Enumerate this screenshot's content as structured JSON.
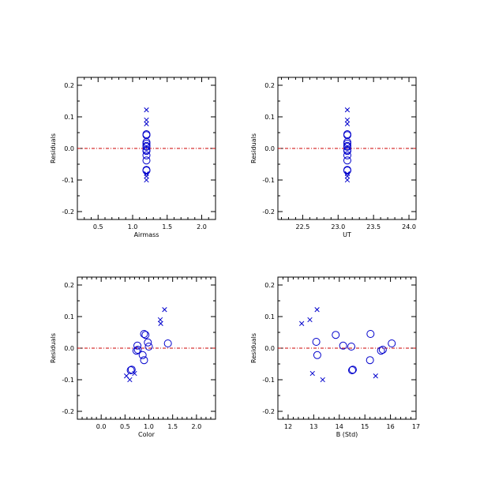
{
  "colors": {
    "points": "#0000cc",
    "zero_line": "#cc0000",
    "axes": "#000000",
    "background": "#ffffff"
  },
  "chart_data": [
    {
      "type": "scatter",
      "xlabel": "Airmass",
      "ylabel": "Residuals",
      "xlim": [
        0.2,
        2.2
      ],
      "ylim": [
        -0.225,
        0.225
      ],
      "xticks_major": [
        "0.5",
        "1.0",
        "1.5",
        "2.0"
      ],
      "xticks_major_values": [
        0.5,
        1.0,
        1.5,
        2.0
      ],
      "xticks_minor_values": [
        0.3,
        0.4,
        0.6,
        0.7,
        0.8,
        0.9,
        1.1,
        1.2,
        1.3,
        1.4,
        1.6,
        1.7,
        1.8,
        1.9,
        2.1
      ],
      "yticks": [
        "-0.2",
        "-0.1",
        "0.0",
        "0.1",
        "0.2"
      ],
      "yticks_values": [
        -0.2,
        -0.1,
        0.0,
        0.1,
        0.2
      ],
      "reference_line_y": 0.0,
      "series": [
        {
          "marker": "circle",
          "points": [
            {
              "x": 1.2,
              "y": 0.045
            },
            {
              "x": 1.2,
              "y": 0.042
            },
            {
              "x": 1.2,
              "y": 0.02
            },
            {
              "x": 1.2,
              "y": 0.015
            },
            {
              "x": 1.2,
              "y": 0.008
            },
            {
              "x": 1.2,
              "y": 0.005
            },
            {
              "x": 1.2,
              "y": -0.005
            },
            {
              "x": 1.2,
              "y": -0.008
            },
            {
              "x": 1.2,
              "y": -0.022
            },
            {
              "x": 1.2,
              "y": -0.038
            },
            {
              "x": 1.2,
              "y": -0.068
            },
            {
              "x": 1.2,
              "y": -0.07
            }
          ]
        },
        {
          "marker": "x",
          "points": [
            {
              "x": 1.2,
              "y": 0.122
            },
            {
              "x": 1.2,
              "y": 0.09
            },
            {
              "x": 1.2,
              "y": 0.078
            },
            {
              "x": 1.2,
              "y": -0.08
            },
            {
              "x": 1.2,
              "y": -0.088
            },
            {
              "x": 1.2,
              "y": -0.1
            }
          ]
        }
      ]
    },
    {
      "type": "scatter",
      "xlabel": "UT",
      "ylabel": "Residuals",
      "xlim": [
        22.15,
        24.1
      ],
      "ylim": [
        -0.225,
        0.225
      ],
      "xticks_major": [
        "22.5",
        "23.0",
        "23.5",
        "24.0"
      ],
      "xticks_major_values": [
        22.5,
        23.0,
        23.5,
        24.0
      ],
      "xticks_minor_values": [
        22.2,
        22.3,
        22.4,
        22.6,
        22.7,
        22.8,
        22.9,
        23.1,
        23.2,
        23.3,
        23.4,
        23.6,
        23.7,
        23.8,
        23.9
      ],
      "yticks": [
        "-0.2",
        "-0.1",
        "0.0",
        "0.1",
        "0.2"
      ],
      "yticks_values": [
        -0.2,
        -0.1,
        0.0,
        0.1,
        0.2
      ],
      "reference_line_y": 0.0,
      "series": [
        {
          "marker": "circle",
          "points": [
            {
              "x": 23.13,
              "y": 0.045
            },
            {
              "x": 23.13,
              "y": 0.042
            },
            {
              "x": 23.13,
              "y": 0.02
            },
            {
              "x": 23.13,
              "y": 0.015
            },
            {
              "x": 23.13,
              "y": 0.008
            },
            {
              "x": 23.13,
              "y": 0.005
            },
            {
              "x": 23.13,
              "y": -0.005
            },
            {
              "x": 23.13,
              "y": -0.008
            },
            {
              "x": 23.13,
              "y": -0.022
            },
            {
              "x": 23.13,
              "y": -0.038
            },
            {
              "x": 23.13,
              "y": -0.068
            },
            {
              "x": 23.13,
              "y": -0.07
            }
          ]
        },
        {
          "marker": "x",
          "points": [
            {
              "x": 23.13,
              "y": 0.122
            },
            {
              "x": 23.13,
              "y": 0.09
            },
            {
              "x": 23.13,
              "y": 0.078
            },
            {
              "x": 23.13,
              "y": -0.08
            },
            {
              "x": 23.13,
              "y": -0.088
            },
            {
              "x": 23.13,
              "y": -0.1
            }
          ]
        }
      ]
    },
    {
      "type": "scatter",
      "xlabel": "Color",
      "ylabel": "Residuals",
      "xlim": [
        -0.5,
        2.4
      ],
      "ylim": [
        -0.225,
        0.225
      ],
      "xticks_major": [
        "0.0",
        "0.5",
        "1.0",
        "1.5",
        "2.0"
      ],
      "xticks_major_values": [
        0.0,
        0.5,
        1.0,
        1.5,
        2.0
      ],
      "xticks_minor_values": [
        -0.4,
        -0.3,
        -0.2,
        -0.1,
        0.1,
        0.2,
        0.3,
        0.4,
        0.6,
        0.7,
        0.8,
        0.9,
        1.1,
        1.2,
        1.3,
        1.4,
        1.6,
        1.7,
        1.8,
        1.9,
        2.1,
        2.2,
        2.3
      ],
      "yticks": [
        "-0.2",
        "-0.1",
        "0.0",
        "0.1",
        "0.2"
      ],
      "yticks_values": [
        -0.2,
        -0.1,
        0.0,
        0.1,
        0.2
      ],
      "reference_line_y": 0.0,
      "series": [
        {
          "marker": "circle",
          "points": [
            {
              "x": 0.9,
              "y": 0.045
            },
            {
              "x": 0.93,
              "y": 0.042
            },
            {
              "x": 0.98,
              "y": 0.018
            },
            {
              "x": 1.4,
              "y": 0.015
            },
            {
              "x": 0.76,
              "y": 0.008
            },
            {
              "x": 1.0,
              "y": 0.005
            },
            {
              "x": 0.77,
              "y": -0.005
            },
            {
              "x": 0.74,
              "y": -0.008
            },
            {
              "x": 0.87,
              "y": -0.022
            },
            {
              "x": 0.9,
              "y": -0.038
            },
            {
              "x": 0.64,
              "y": -0.068
            },
            {
              "x": 0.62,
              "y": -0.07
            }
          ]
        },
        {
          "marker": "x",
          "points": [
            {
              "x": 1.33,
              "y": 0.122
            },
            {
              "x": 1.24,
              "y": 0.09
            },
            {
              "x": 1.25,
              "y": 0.078
            },
            {
              "x": 0.7,
              "y": -0.08
            },
            {
              "x": 0.53,
              "y": -0.088
            },
            {
              "x": 0.6,
              "y": -0.1
            }
          ]
        }
      ]
    },
    {
      "type": "scatter",
      "xlabel": "B (Std)",
      "ylabel": "Residuals",
      "xlim": [
        11.6,
        17.0
      ],
      "ylim": [
        -0.225,
        0.225
      ],
      "xticks_major": [
        "12",
        "13",
        "14",
        "15",
        "16",
        "17"
      ],
      "xticks_major_values": [
        12,
        13,
        14,
        15,
        16,
        17
      ],
      "xticks_minor_values": [
        11.8,
        12.2,
        12.4,
        12.6,
        12.8,
        13.2,
        13.4,
        13.6,
        13.8,
        14.2,
        14.4,
        14.6,
        14.8,
        15.2,
        15.4,
        15.6,
        15.8,
        16.2,
        16.4,
        16.6,
        16.8
      ],
      "yticks": [
        "-0.2",
        "-0.1",
        "0.0",
        "0.1",
        "0.2"
      ],
      "yticks_values": [
        -0.2,
        -0.1,
        0.0,
        0.1,
        0.2
      ],
      "reference_line_y": 0.0,
      "series": [
        {
          "marker": "circle",
          "points": [
            {
              "x": 15.22,
              "y": 0.045
            },
            {
              "x": 13.86,
              "y": 0.042
            },
            {
              "x": 13.1,
              "y": 0.02
            },
            {
              "x": 16.05,
              "y": 0.015
            },
            {
              "x": 14.15,
              "y": 0.008
            },
            {
              "x": 14.47,
              "y": 0.005
            },
            {
              "x": 15.7,
              "y": -0.005
            },
            {
              "x": 15.63,
              "y": -0.008
            },
            {
              "x": 13.14,
              "y": -0.022
            },
            {
              "x": 15.2,
              "y": -0.038
            },
            {
              "x": 14.53,
              "y": -0.068
            },
            {
              "x": 14.5,
              "y": -0.07
            }
          ]
        },
        {
          "marker": "x",
          "points": [
            {
              "x": 13.13,
              "y": 0.122
            },
            {
              "x": 12.85,
              "y": 0.09
            },
            {
              "x": 12.53,
              "y": 0.078
            },
            {
              "x": 12.95,
              "y": -0.08
            },
            {
              "x": 15.42,
              "y": -0.088
            },
            {
              "x": 13.35,
              "y": -0.1
            }
          ]
        }
      ]
    }
  ]
}
